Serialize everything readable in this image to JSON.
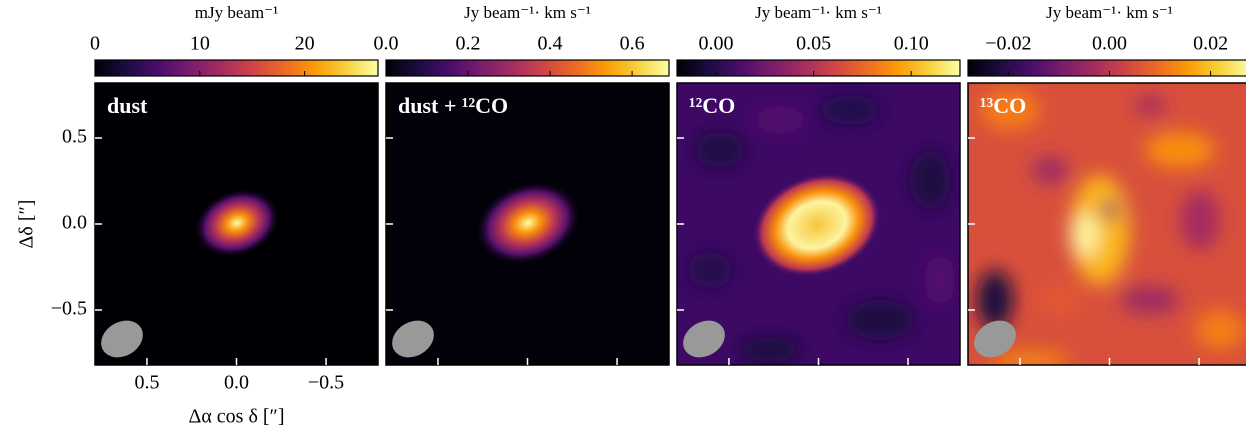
{
  "chart_data": [
    {
      "type": "image",
      "label": "dust",
      "colormap": "inferno",
      "colorbar_label": "mJy beam⁻¹",
      "clim": [
        0,
        27
      ],
      "cticks": [
        0,
        10,
        20
      ],
      "xlim": [
        0.79,
        -0.79
      ],
      "ylim": [
        -0.82,
        0.82
      ],
      "xticks": [
        0.5,
        {
          "value": 0,
          "label": "0.0"
        },
        {
          "value": -0.5,
          "label": "−0.5"
        }
      ],
      "yticks": [
        0.5,
        {
          "value": 0,
          "label": "0.0"
        },
        {
          "value": -0.5,
          "label": "−0.5"
        }
      ],
      "tick_labels": true,
      "xlabel": "Δα cos δ [″]",
      "ylabel": "Δδ [″]"
    },
    {
      "type": "image",
      "label": "dust + ¹²CO",
      "colormap": "inferno",
      "colorbar_label": "Jy beam⁻¹· km s⁻¹",
      "clim": [
        0,
        0.69
      ],
      "cticks": [
        {
          "value": 0,
          "label": "0.0"
        },
        0.2,
        0.4,
        0.6
      ],
      "xlim": [
        0.79,
        -0.79
      ],
      "ylim": [
        -0.82,
        0.82
      ],
      "xticks": [
        0.5,
        0,
        -0.5
      ],
      "yticks": [
        0.5,
        0,
        -0.5
      ],
      "tick_labels": false
    },
    {
      "type": "image",
      "label": "¹²CO",
      "colormap": "inferno",
      "colorbar_label": "Jy beam⁻¹· km s⁻¹",
      "clim": [
        -0.02,
        0.125
      ],
      "cticks": [
        {
          "value": 0,
          "label": "0.00"
        },
        0.05,
        {
          "value": 0.1,
          "label": "0.10"
        }
      ],
      "xlim": [
        0.79,
        -0.79
      ],
      "ylim": [
        -0.82,
        0.82
      ],
      "xticks": [
        0.5,
        0,
        -0.5
      ],
      "yticks": [
        0.5,
        0,
        -0.5
      ],
      "tick_labels": false
    },
    {
      "type": "image",
      "label": "¹³CO",
      "colormap": "inferno",
      "colorbar_label": "Jy beam⁻¹· km s⁻¹",
      "clim": [
        -0.028,
        0.028
      ],
      "cticks": [
        {
          "value": -0.02,
          "label": "−0.02"
        },
        {
          "value": 0,
          "label": "0.00"
        },
        0.02
      ],
      "xlim": [
        0.79,
        -0.79
      ],
      "ylim": [
        -0.82,
        0.82
      ],
      "xticks": [
        0.5,
        0,
        -0.5
      ],
      "yticks": [
        0.5,
        0,
        -0.5
      ],
      "tick_labels": false
    }
  ]
}
